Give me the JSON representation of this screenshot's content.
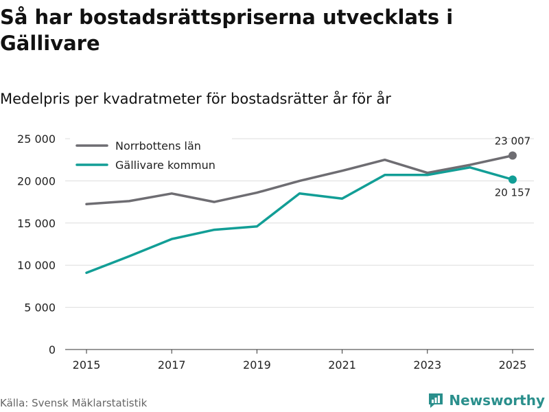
{
  "title": "Så har bostadsrättspriserna utvecklats i Gällivare",
  "subtitle": "Medelpris per kvadratmeter för bostadsrätter år för år",
  "source": "Källa: Svensk Mäklarstatistik",
  "brand": "Newsworthy",
  "colors": {
    "norrbotten": "#6e6d72",
    "gallivare": "#129e96",
    "grid": "#dddddd",
    "axis": "#333333",
    "brand": "#2a8f8c"
  },
  "chart_data": {
    "type": "line",
    "title": "Så har bostadsrättspriserna utvecklats i Gällivare",
    "subtitle": "Medelpris per kvadratmeter för bostadsrätter år för år",
    "xlabel": "",
    "ylabel": "",
    "x": [
      2015,
      2016,
      2017,
      2018,
      2019,
      2020,
      2021,
      2022,
      2023,
      2024,
      2025
    ],
    "xlim": [
      2014.5,
      2025.5
    ],
    "ylim": [
      0,
      25000
    ],
    "x_ticks": [
      2015,
      2017,
      2019,
      2021,
      2023,
      2025
    ],
    "x_tick_labels": [
      "2015",
      "2017",
      "2019",
      "2021",
      "2023",
      "2025"
    ],
    "y_ticks": [
      0,
      5000,
      10000,
      15000,
      20000,
      25000
    ],
    "y_tick_labels": [
      "0",
      "5 000",
      "10 000",
      "15 000",
      "20 000",
      "25 000"
    ],
    "grid": "horizontal",
    "legend_position": "top-left",
    "series": [
      {
        "name": "Norrbottens län",
        "color": "#6e6d72",
        "values": [
          17250,
          17600,
          18500,
          17500,
          18600,
          20000,
          21200,
          22500,
          20950,
          21900,
          23007
        ],
        "end_label": "23 007"
      },
      {
        "name": "Gällivare kommun",
        "color": "#129e96",
        "values": [
          9100,
          11050,
          13100,
          14200,
          14600,
          18500,
          17900,
          20700,
          20700,
          21600,
          20157
        ],
        "end_label": "20 157"
      }
    ]
  }
}
